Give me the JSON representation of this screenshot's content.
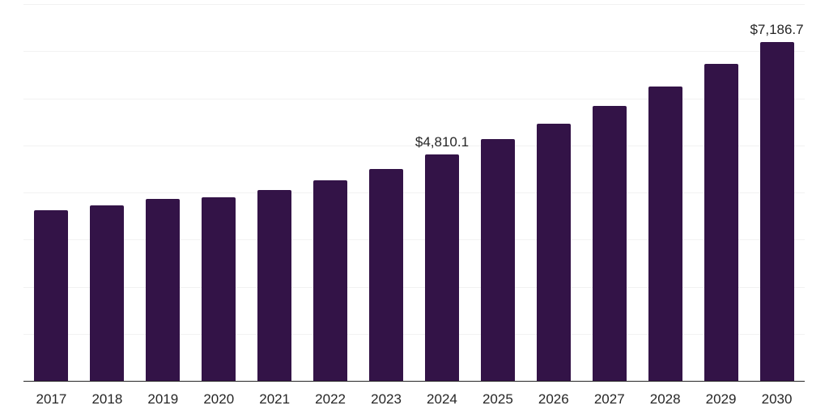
{
  "chart_data": {
    "type": "bar",
    "title": "",
    "xlabel": "",
    "ylabel": "",
    "categories": [
      "2017",
      "2018",
      "2019",
      "2020",
      "2021",
      "2022",
      "2023",
      "2024",
      "2025",
      "2026",
      "2027",
      "2028",
      "2029",
      "2030"
    ],
    "values": [
      3630,
      3730,
      3860,
      3905,
      4045,
      4255,
      4495,
      4810.1,
      5130,
      5465,
      5830,
      6245,
      6730,
      7186.7
    ],
    "value_unit": "USD million",
    "data_labels": [
      {
        "category": "2024",
        "text": "$4,810.1"
      },
      {
        "category": "2030",
        "text": "$7,186.7"
      }
    ],
    "ylim": [
      0,
      8000
    ],
    "gridline_interval": 1000,
    "grid": "horizontal",
    "legend": "none",
    "y_tick_labels_visible": false
  },
  "colors": {
    "bar": "#331347",
    "gridline": "#f2f2f2",
    "axis": "#262626",
    "text": "#262626",
    "background": "#ffffff"
  }
}
